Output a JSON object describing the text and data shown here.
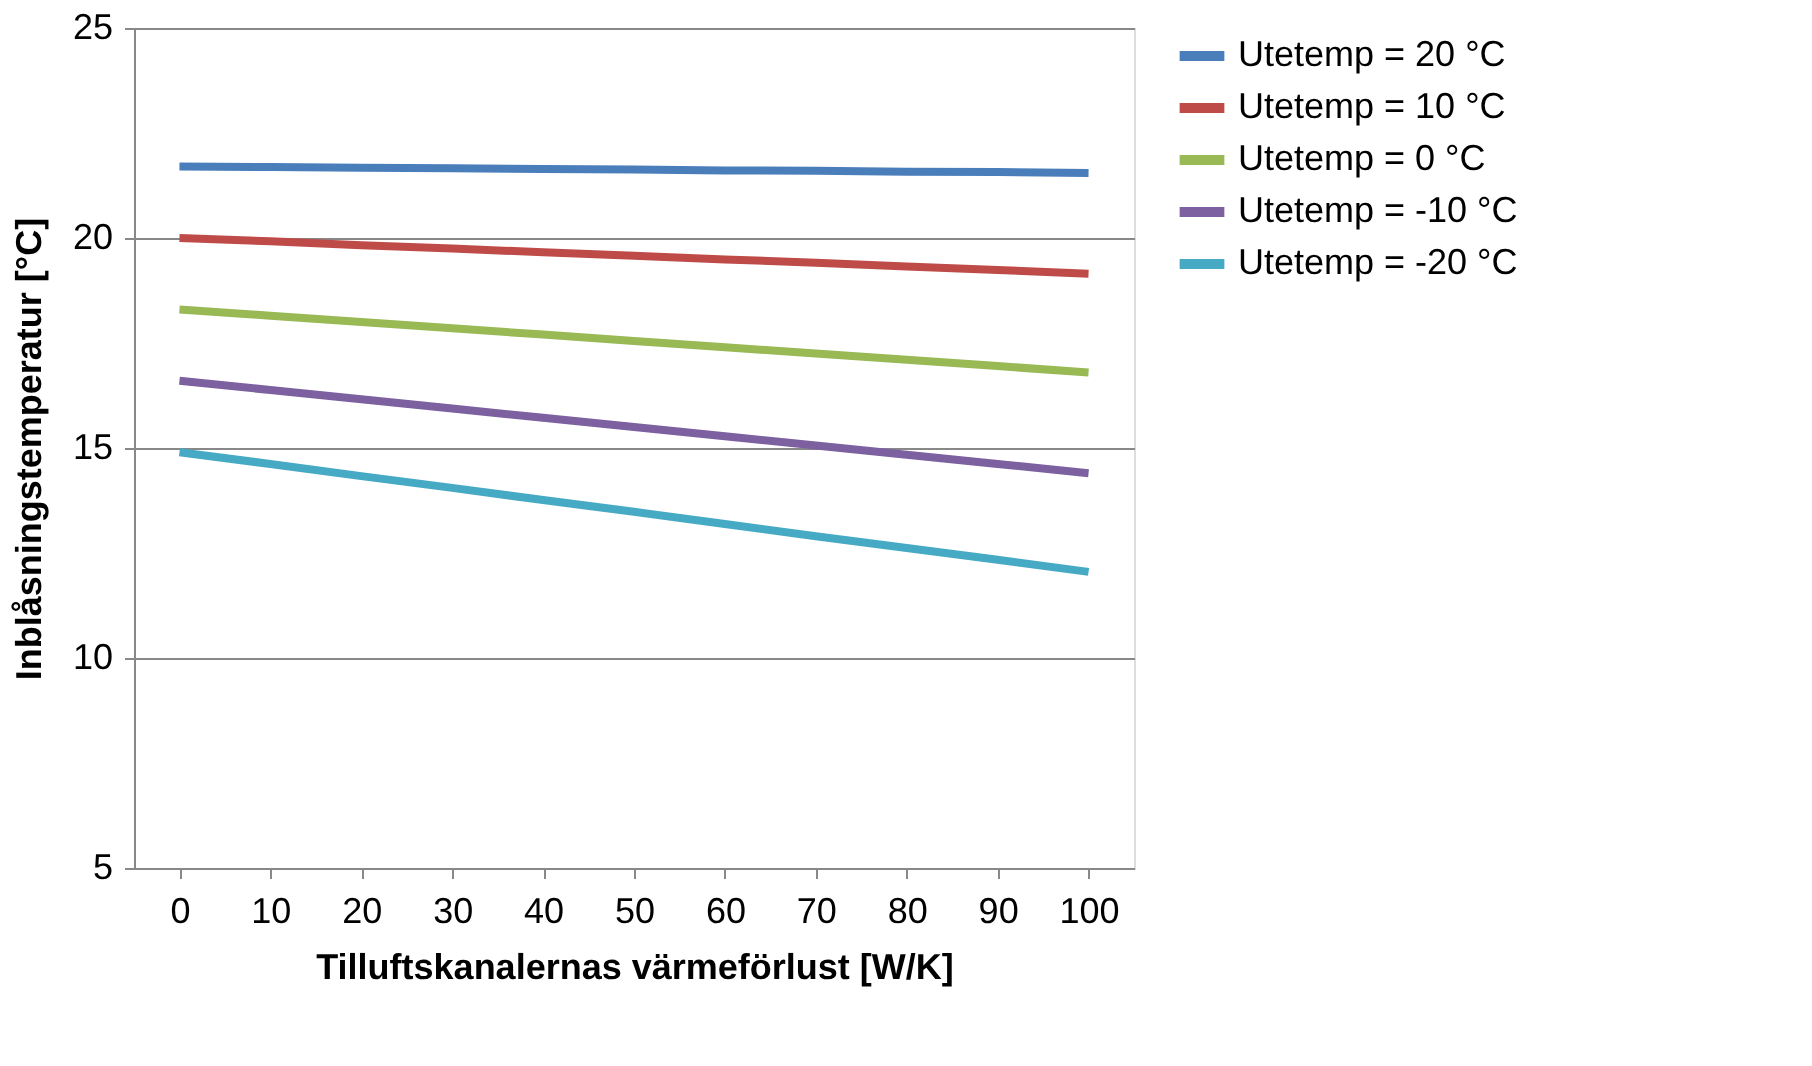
{
  "chart_data": {
    "type": "line",
    "xlabel": "Tilluftskanalernas värmeförlust [W/K]",
    "ylabel": "Inblåsningstemperatur [°C]",
    "categories": [
      "0",
      "10",
      "20",
      "30",
      "40",
      "50",
      "60",
      "70",
      "80",
      "90",
      "100"
    ],
    "series": [
      {
        "name": "Utetemp = 20 °C",
        "color": "#4a7ebb",
        "values": [
          21.7,
          21.69,
          21.67,
          21.66,
          21.64,
          21.63,
          21.61,
          21.6,
          21.58,
          21.57,
          21.55
        ]
      },
      {
        "name": "Utetemp = 10 °C",
        "color": "#be4b48",
        "values": [
          20.0,
          19.92,
          19.83,
          19.75,
          19.66,
          19.58,
          19.49,
          19.41,
          19.32,
          19.24,
          19.15
        ]
      },
      {
        "name": "Utetemp = 0 °C",
        "color": "#98b954",
        "values": [
          18.3,
          18.15,
          18.0,
          17.85,
          17.7,
          17.55,
          17.4,
          17.25,
          17.1,
          16.95,
          16.8
        ]
      },
      {
        "name": "Utetemp = -10 °C",
        "color": "#7d60a0",
        "values": [
          16.6,
          16.38,
          16.16,
          15.94,
          15.72,
          15.5,
          15.28,
          15.06,
          14.84,
          14.62,
          14.4
        ]
      },
      {
        "name": "Utetemp = -20 °C",
        "color": "#46aac5",
        "values": [
          14.9,
          14.62,
          14.33,
          14.05,
          13.76,
          13.48,
          13.19,
          12.9,
          12.62,
          12.34,
          12.05
        ]
      }
    ],
    "ylim": [
      5,
      25
    ],
    "yticks": [
      5,
      10,
      15,
      20,
      25
    ],
    "grid": "y",
    "legend": "right",
    "marker": "none",
    "line_style": "solid"
  }
}
